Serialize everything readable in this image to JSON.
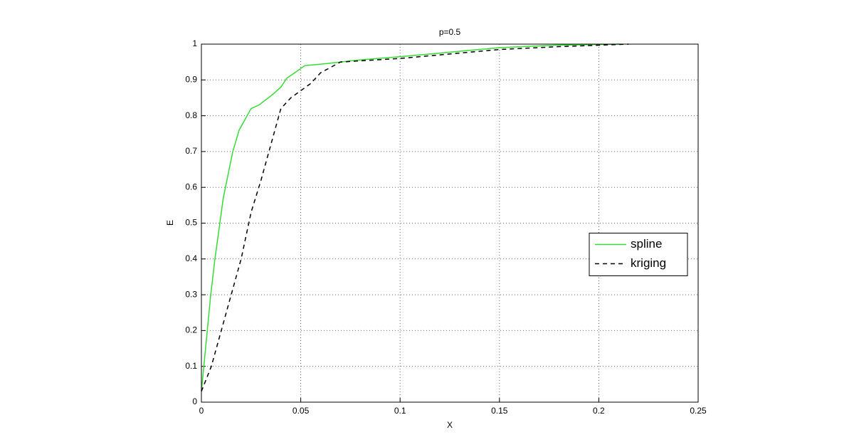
{
  "chart_data": {
    "type": "line",
    "title": "p=0.5",
    "x_label": "X",
    "y_label": "E",
    "xlim": [
      0,
      0.25
    ],
    "xticks": [
      0,
      0.05,
      0.1,
      0.15,
      0.2,
      0.25
    ],
    "ylim": [
      0,
      1
    ],
    "yticks": [
      0,
      0.1,
      0.2,
      0.3,
      0.4,
      0.5,
      0.6,
      0.7,
      0.8,
      0.9,
      1
    ],
    "grid": true,
    "legend": "east",
    "series": [
      {
        "name": "spline",
        "color": "#33dd33",
        "dash": false,
        "x": [
          0,
          0.0047,
          0.0068,
          0.0093,
          0.011,
          0.0158,
          0.019,
          0.025,
          0.029,
          0.036,
          0.04,
          0.043,
          0.047,
          0.052,
          0.062,
          0.078,
          0.1,
          0.12,
          0.15,
          0.178,
          0.212
        ],
        "values": [
          0.03,
          0.3,
          0.4,
          0.5,
          0.57,
          0.7,
          0.76,
          0.82,
          0.83,
          0.86,
          0.88,
          0.905,
          0.92,
          0.94,
          0.945,
          0.955,
          0.965,
          0.975,
          0.99,
          0.997,
          1.0
        ]
      },
      {
        "name": "kriging",
        "color": "#000000",
        "dash": true,
        "x": [
          0,
          0.005,
          0.01,
          0.015,
          0.02,
          0.025,
          0.03,
          0.035,
          0.04,
          0.045,
          0.05,
          0.055,
          0.06,
          0.07,
          0.1,
          0.13,
          0.15,
          0.18,
          0.2,
          0.215
        ],
        "values": [
          0.03,
          0.1,
          0.2,
          0.3,
          0.4,
          0.53,
          0.62,
          0.72,
          0.82,
          0.85,
          0.87,
          0.89,
          0.92,
          0.95,
          0.96,
          0.975,
          0.985,
          0.993,
          0.997,
          1.0
        ]
      }
    ]
  }
}
